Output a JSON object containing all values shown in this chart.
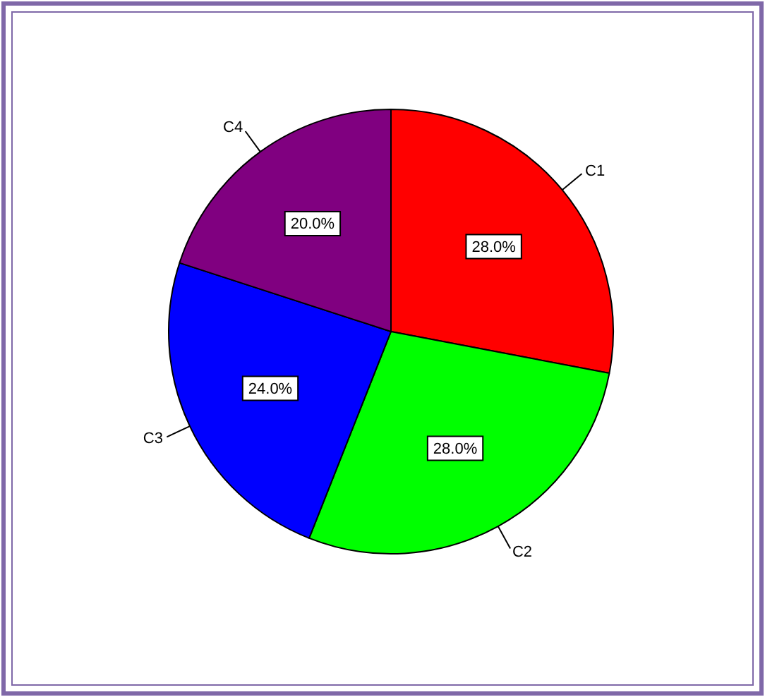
{
  "chart_data": {
    "type": "pie",
    "categories": [
      "C1",
      "C2",
      "C3",
      "C4"
    ],
    "values": [
      28,
      28,
      24,
      20
    ],
    "colors": [
      "#ff0000",
      "#00ff00",
      "#0000ff",
      "#800080"
    ],
    "value_labels": [
      "28.0%",
      "28.0%",
      "24.0%",
      "20.0%"
    ],
    "legend": false
  }
}
